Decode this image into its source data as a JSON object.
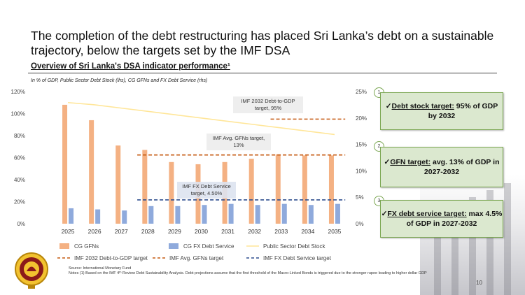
{
  "header": {
    "headline": "The completion of the debt restructuring has placed Sri Lanka’s debt on a sustainable trajectory, below the targets set by the IMF DSA",
    "subtitle": "Overview of Sri Lanka's DSA indicator performance¹",
    "note": "In % of GDP, Public Sector Debt Stock (lhs), CG GFNs and FX Debt Service (rhs)"
  },
  "colors": {
    "gfn": "#f4b183",
    "fxds": "#8faadc",
    "debt": "#ffe699",
    "orange_dash": "#c55a11",
    "navy_dash": "#2f4f8f",
    "box_fill": "#dbe8cf",
    "box_border": "#7aa651"
  },
  "chart_data": {
    "type": "bar",
    "categories": [
      "2025",
      "2026",
      "2027",
      "2028",
      "2029",
      "2030",
      "2031",
      "2032",
      "2033",
      "2034",
      "2035"
    ],
    "series": [
      {
        "name": "CG GFNs",
        "axis": "left",
        "kind": "bar",
        "values": [
          108,
          94,
          71,
          67,
          56,
          54,
          56,
          59,
          63,
          62,
          62
        ]
      },
      {
        "name": "CG FX Debt Service",
        "axis": "left",
        "kind": "bar",
        "values": [
          14,
          13,
          12,
          16,
          16,
          17,
          18,
          17,
          18,
          17,
          18
        ]
      },
      {
        "name": "Public Sector Debt Stock",
        "axis": "left",
        "kind": "line",
        "values": [
          110,
          108,
          105,
          102,
          99,
          96,
          93,
          90,
          87,
          84,
          81
        ]
      },
      {
        "name": "IMF 2032 Debt-to-GDP target",
        "axis": "left",
        "kind": "dash",
        "value": 95,
        "from": "2033",
        "to": "2035"
      },
      {
        "name": "IMF Avg. GFNs target",
        "axis": "right",
        "kind": "dash",
        "value": 13,
        "from": "2028",
        "to": "2035"
      },
      {
        "name": "IMF FX Debt Service target",
        "axis": "right",
        "kind": "dash",
        "value": 4.5,
        "from": "2028",
        "to": "2035"
      }
    ],
    "ylim_left": [
      0,
      120
    ],
    "ylim_right": [
      0,
      25
    ],
    "left_ticks": [
      "0%",
      "20%",
      "40%",
      "60%",
      "80%",
      "100%",
      "120%"
    ],
    "left_tick_values": [
      0,
      20,
      40,
      60,
      80,
      100,
      120
    ],
    "right_ticks": [
      "0%",
      "5%",
      "10%",
      "15%",
      "20%",
      "25%"
    ],
    "right_tick_values": [
      0,
      5,
      10,
      15,
      20,
      25
    ],
    "annotations": [
      {
        "text": [
          "IMF 2032 Debt-to-GDP",
          "target, 95%"
        ]
      },
      {
        "text": [
          "IMF Avg. GFNs target,",
          "13%"
        ]
      },
      {
        "text": [
          "IMF FX Debt Service",
          "target, 4.50%"
        ]
      }
    ],
    "legend": [
      "CG GFNs",
      "CG FX Debt Service",
      "Public Sector Debt Stock",
      "IMF 2032 Debt-to-GDP target",
      "IMF Avg. GFNs target",
      "IMF FX Debt Service target"
    ]
  },
  "targets": [
    {
      "badge": "1",
      "label": "Debt stock target:",
      "rest": " 95% of GDP by 2032"
    },
    {
      "badge": "2",
      "label": "GFN target:",
      "rest": " avg. 13% of GDP in 2027-2032"
    },
    {
      "badge": "3",
      "label": "FX debt service target:",
      "rest": " max 4.5% of GDP in 2027-2032"
    }
  ],
  "footer": {
    "source": "Source: International Monetary Fund",
    "notes": "Notes (1) Based on the IMF 4ᵗʰ Review Debt Sustainability Analysis. Debt projections assume that the first threshold of the Macro-Linked Bonds is triggered due to the stronger rupee leading to higher dollar GDP",
    "page": "10"
  }
}
